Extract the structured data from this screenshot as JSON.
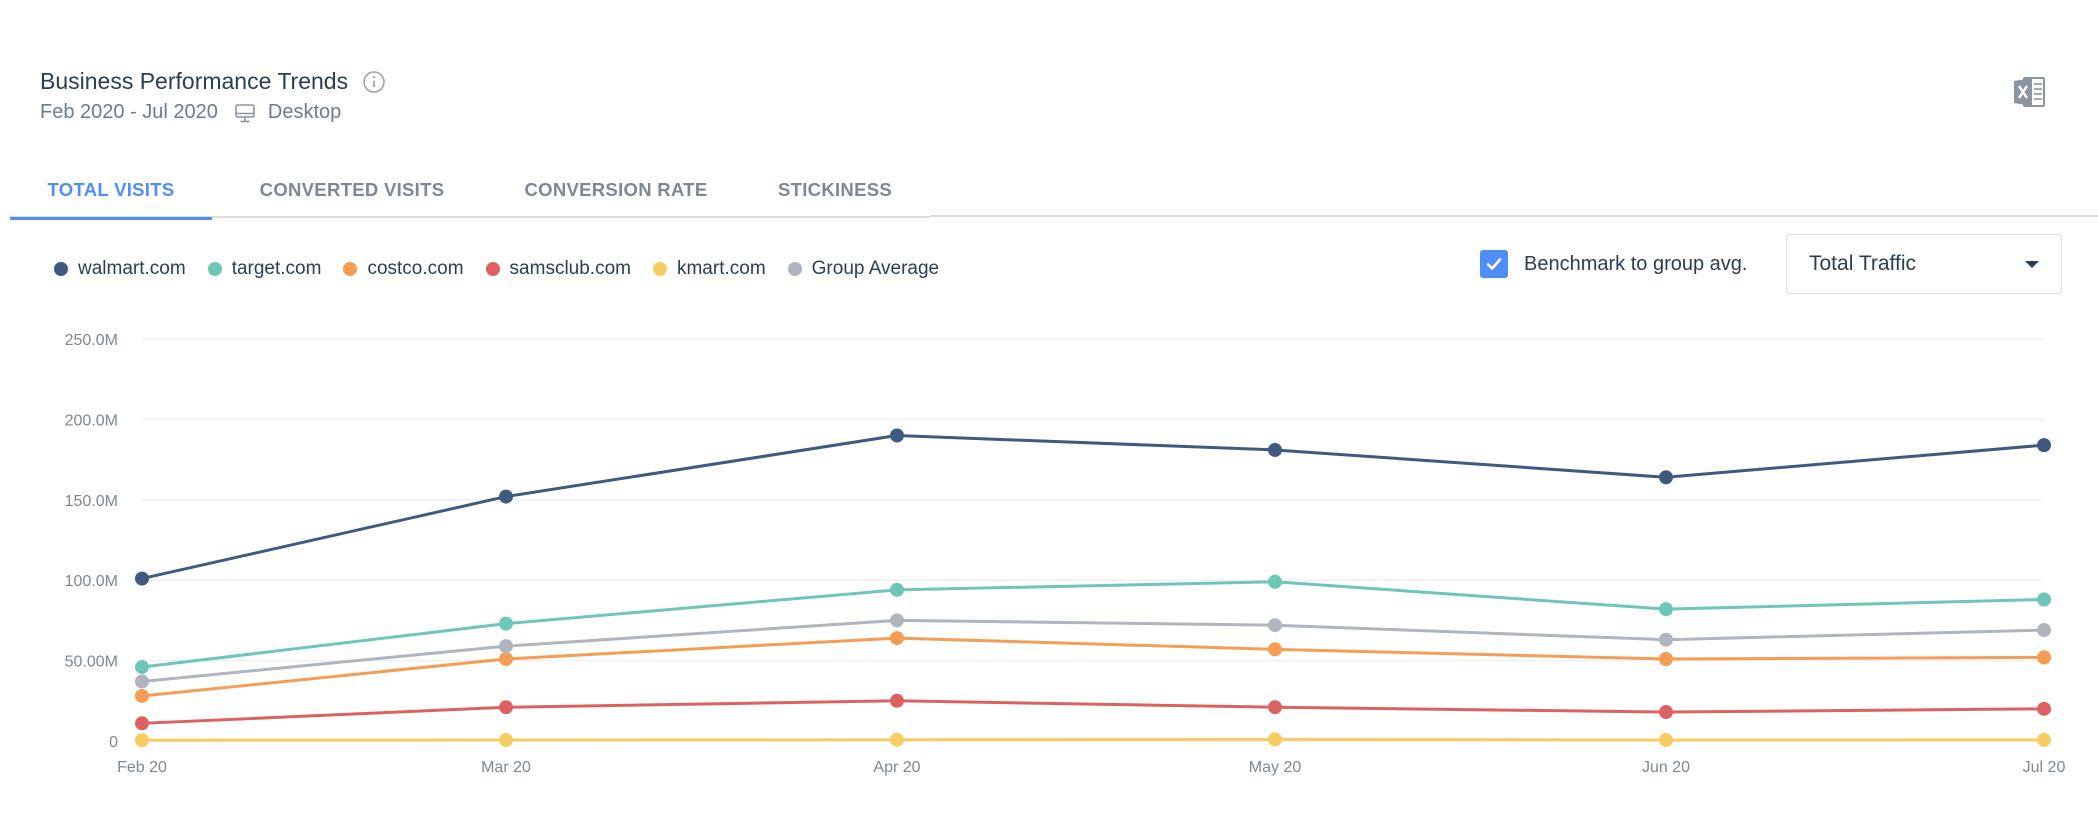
{
  "header": {
    "title": "Business Performance Trends",
    "date_range": "Feb 2020 - Jul 2020",
    "device": "Desktop"
  },
  "tabs": [
    {
      "label": "TOTAL VISITS",
      "active": true
    },
    {
      "label": "CONVERTED VISITS",
      "active": false
    },
    {
      "label": "CONVERSION RATE",
      "active": false
    },
    {
      "label": "STICKINESS",
      "active": false
    }
  ],
  "controls": {
    "benchmark_label": "Benchmark to group avg.",
    "benchmark_checked": true,
    "dropdown_value": "Total Traffic"
  },
  "colors": {
    "accent": "#4f8df9",
    "grid": "#eef0f3"
  },
  "chart_data": {
    "type": "line",
    "categories": [
      "Feb 20",
      "Mar 20",
      "Apr 20",
      "May 20",
      "Jun 20",
      "Jul 20"
    ],
    "ylim": [
      0,
      250000000
    ],
    "yticks": [
      {
        "value": 0,
        "label": "0"
      },
      {
        "value": 50000000,
        "label": "50.00M"
      },
      {
        "value": 100000000,
        "label": "100.0M"
      },
      {
        "value": 150000000,
        "label": "150.0M"
      },
      {
        "value": 200000000,
        "label": "200.0M"
      },
      {
        "value": 250000000,
        "label": "250.0M"
      }
    ],
    "grid": true,
    "legend_position": "top-left",
    "series": [
      {
        "name": "walmart.com",
        "color": "#3f5a80",
        "values": [
          101000000,
          152000000,
          190000000,
          181000000,
          164000000,
          184000000
        ]
      },
      {
        "name": "target.com",
        "color": "#6cc7b7",
        "values": [
          46000000,
          73000000,
          94000000,
          99000000,
          82000000,
          88000000
        ]
      },
      {
        "name": "costco.com",
        "color": "#f59d55",
        "values": [
          28000000,
          51000000,
          64000000,
          57000000,
          51000000,
          52000000
        ]
      },
      {
        "name": "samsclub.com",
        "color": "#dc6262",
        "values": [
          11000000,
          21000000,
          25000000,
          21000000,
          18000000,
          20000000
        ]
      },
      {
        "name": "kmart.com",
        "color": "#f6cd62",
        "values": [
          500000,
          600000,
          800000,
          1000000,
          600000,
          700000
        ]
      },
      {
        "name": "Group Average",
        "color": "#b0b5bd",
        "values": [
          37000000,
          59000000,
          75000000,
          72000000,
          63000000,
          69000000
        ]
      }
    ]
  }
}
